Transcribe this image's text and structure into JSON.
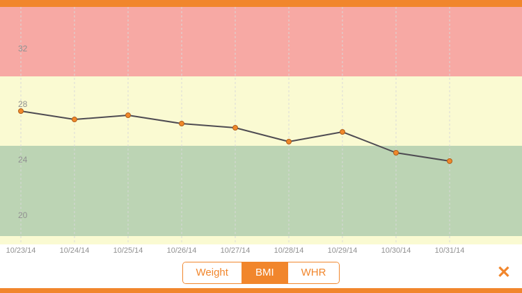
{
  "accent_color": "#F1862C",
  "chart_data": {
    "type": "line",
    "title": "",
    "xlabel": "",
    "ylabel": "",
    "x_labels": [
      "10/23/14",
      "10/24/14",
      "10/25/14",
      "10/26/14",
      "10/27/14",
      "10/28/14",
      "10/29/14",
      "10/30/14",
      "10/31/14"
    ],
    "series": [
      {
        "name": "BMI",
        "values": [
          27.5,
          26.9,
          27.2,
          26.6,
          26.3,
          25.3,
          26.0,
          24.5,
          23.9
        ]
      }
    ],
    "y_ticks": [
      32,
      28,
      24,
      20
    ],
    "ylim": [
      17.9,
      35.0
    ],
    "grid": "vertical-dashed",
    "legend": "none",
    "bands": [
      {
        "name": "obese-zone",
        "from": 30.0,
        "to": 35.0,
        "color": "#F7A9A4"
      },
      {
        "name": "overweight-zone",
        "from": 25.0,
        "to": 30.0,
        "color": "#FAFAD2"
      },
      {
        "name": "normal-zone",
        "from": 18.5,
        "to": 25.0,
        "color": "#BCD4B4"
      },
      {
        "name": "underweight-zone",
        "from": 17.9,
        "to": 18.5,
        "color": "#FAFAD2"
      }
    ],
    "line_color": "#4E4B52",
    "marker_fill": "#F0882B",
    "marker_stroke": "#B05F1A",
    "grid_color": "#D9D9D9",
    "tick_color": "#909090"
  },
  "toolbar": {
    "tabs": [
      {
        "label": "Weight",
        "active": false
      },
      {
        "label": "BMI",
        "active": true
      },
      {
        "label": "WHR",
        "active": false
      }
    ],
    "close_icon": "✕"
  }
}
